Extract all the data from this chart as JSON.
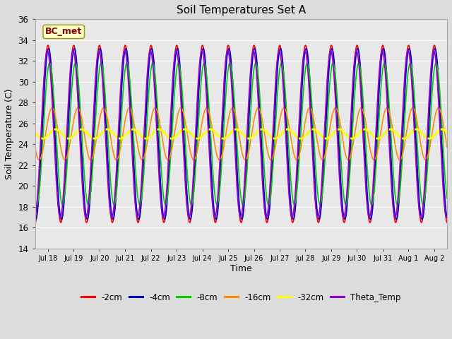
{
  "title": "Soil Temperatures Set A",
  "xlabel": "Time",
  "ylabel": "Soil Temperature (C)",
  "ylim": [
    14,
    36
  ],
  "yticks": [
    14,
    16,
    18,
    20,
    22,
    24,
    26,
    28,
    30,
    32,
    34,
    36
  ],
  "annotation_text": "BC_met",
  "annotation_color": "#8B0000",
  "annotation_bg": "#FFFFCC",
  "series": [
    {
      "label": "-2cm",
      "color": "#FF0000",
      "lw": 1.2
    },
    {
      "label": "-4cm",
      "color": "#0000CC",
      "lw": 1.2
    },
    {
      "label": "-8cm",
      "color": "#00CC00",
      "lw": 1.2
    },
    {
      "label": "-16cm",
      "color": "#FF8C00",
      "lw": 1.2
    },
    {
      "label": "-32cm",
      "color": "#FFFF00",
      "lw": 2.0
    },
    {
      "label": "Theta_Temp",
      "color": "#9400D3",
      "lw": 1.2
    }
  ],
  "background_color": "#E8E8E8",
  "grid_color": "#FFFFFF",
  "fig_bg": "#DCDCDC",
  "start_day": 17.5,
  "end_day": 33.5,
  "num_points": 3000
}
